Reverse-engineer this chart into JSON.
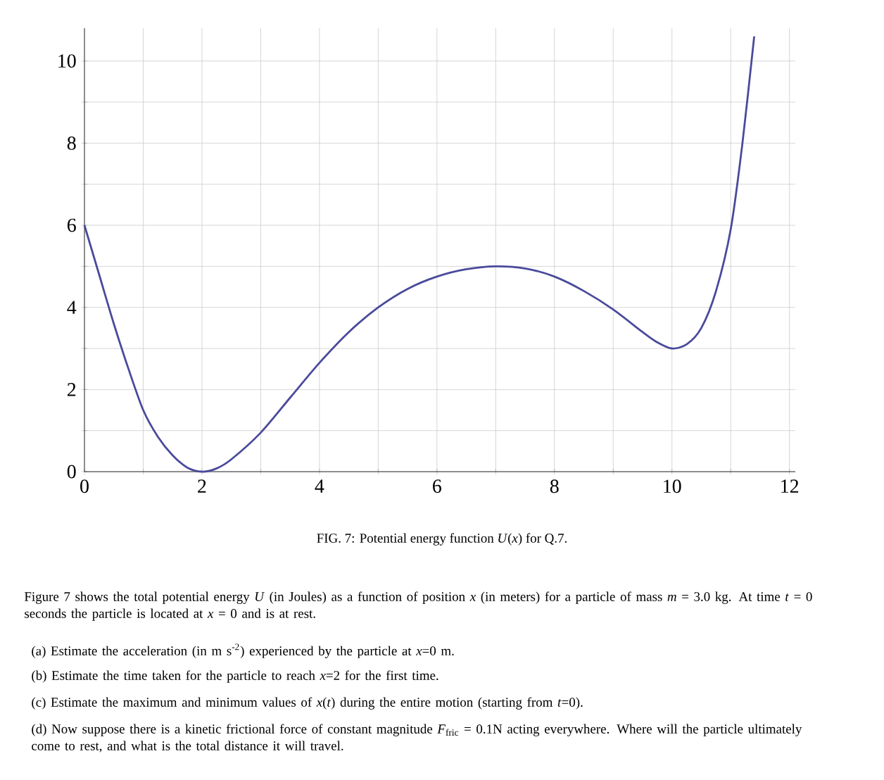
{
  "chart_data": {
    "type": "line",
    "x": [
      0,
      0.25,
      0.5,
      0.75,
      1,
      1.25,
      1.5,
      1.75,
      2,
      2.25,
      2.5,
      3,
      3.5,
      4,
      4.5,
      5,
      5.5,
      6,
      6.5,
      7,
      7.5,
      8,
      8.5,
      9,
      9.5,
      9.75,
      10,
      10.25,
      10.5,
      10.75,
      11,
      11.2,
      11.4
    ],
    "series": [
      {
        "color": "#4a4a9c",
        "values": [
          6,
          4.8,
          3.6,
          2.5,
          1.5,
          0.85,
          0.4,
          0.1,
          0,
          0.08,
          0.3,
          0.95,
          1.8,
          2.65,
          3.4,
          4.0,
          4.45,
          4.75,
          4.93,
          5,
          4.95,
          4.75,
          4.4,
          3.95,
          3.4,
          3.15,
          3.0,
          3.1,
          3.5,
          4.4,
          5.9,
          8.0,
          10.6
        ]
      }
    ],
    "xlim": [
      0,
      12.1
    ],
    "ylim": [
      0,
      10.8
    ],
    "xticks": [
      0,
      {
        "value": 1,
        "label": null
      },
      2,
      {
        "value": 3,
        "label": null
      },
      4,
      {
        "value": 5,
        "label": null
      },
      6,
      {
        "value": 7,
        "label": null
      },
      8,
      {
        "value": 9,
        "label": null
      },
      10,
      {
        "value": 11,
        "label": null
      },
      12
    ],
    "yticks": [
      0,
      {
        "value": 1,
        "label": null
      },
      2,
      {
        "value": 3,
        "label": null
      },
      4,
      {
        "value": 5,
        "label": null
      },
      6,
      {
        "value": 7,
        "label": null
      },
      8,
      {
        "value": 9,
        "label": null
      },
      10
    ],
    "grid": true,
    "marker": "none",
    "line_style": "solid",
    "annotations": [
      "FIG. 7: Potential energy function *U*(*x*) for Q.7.",
      "Figure 7 shows the total potential energy *U* (in Joules) as a function of position *x* (in meters) for a particle of mass *m* = 3.0 kg. At time *t* = 0 seconds the particle is located at *x* = 0 and is at rest.",
      "(a) Estimate the acceleration (in m s$^{-2}$) experienced by the particle at *x*=0 m.",
      "(b) Estimate the time taken for the particle to reach *x*=2 for the first time.",
      "(c) Estimate the maximum and minimum values of *x*(*t*) during the entire motion (starting from *t*=0).",
      "(d) Now suppose there is a kinetic frictional force of constant magnitude *F*$_{fric}$ = 0.1N acting everywhere. Where will the particle ultimately come to rest, and what is the total distance it will travel."
    ]
  }
}
